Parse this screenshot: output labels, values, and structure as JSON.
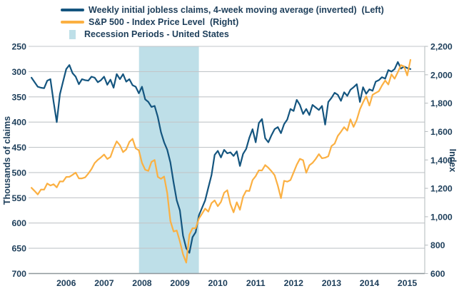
{
  "legend": {
    "items": [
      {
        "label": "Weekly initial jobless claims, 4-week moving average (inverted)  (Left)",
        "swatch": "blue-line"
      },
      {
        "label": "S&P 500 - Index Price Level  (Right)",
        "swatch": "orange-line"
      },
      {
        "label": "Recession Periods - United States",
        "swatch": "recession-rect"
      }
    ]
  },
  "colors": {
    "claims_line": "#14557f",
    "sp500_line": "#fbb042",
    "recession_band": "#bedfe8",
    "gridline": "#c2c6c9",
    "bottom_spine": "#8f979b",
    "right_spine": "#b9bec1",
    "text": "#1d3e5a"
  },
  "chart_data": {
    "type": "line",
    "title": "",
    "legend_position": "top-left",
    "grid": "horizontal",
    "x_domain": [
      2005.1,
      2015.46
    ],
    "x_axis": {
      "tick_values": [
        2006,
        2007,
        2008,
        2009,
        2010,
        2011,
        2012,
        2013,
        2014,
        2015
      ],
      "tick_labels": [
        "2006",
        "2007",
        "2008",
        "2009",
        "2010",
        "2011",
        "2012",
        "2013",
        "2014",
        "2015"
      ]
    },
    "left_axis": {
      "label": "Thousands of claims",
      "min": 250,
      "max": 700,
      "inverted": true,
      "tick_values": [
        250,
        300,
        350,
        400,
        450,
        500,
        550,
        600,
        650,
        700
      ],
      "tick_labels": [
        "250",
        "300",
        "350",
        "400",
        "450",
        "500",
        "550",
        "600",
        "650",
        "700"
      ]
    },
    "right_axis": {
      "label": "Index",
      "min": 600,
      "max": 2200,
      "tick_values": [
        600,
        800,
        1000,
        1200,
        1400,
        1600,
        1800,
        2000,
        2200
      ],
      "tick_labels": [
        "600",
        "800",
        "1,000",
        "1,200",
        "1,400",
        "1,600",
        "1,800",
        "2,000",
        "2,200"
      ]
    },
    "recession_band": {
      "label": "Recession Periods - United States",
      "x_start": 2007.92,
      "x_end": 2009.5
    },
    "series": [
      {
        "name": "Weekly initial jobless claims, 4-week moving average (inverted)  (Left)",
        "axis": "left",
        "color": "#14557f",
        "x_start": 2005.083,
        "x_step_years": 0.08333,
        "values": [
          312,
          321,
          330,
          332,
          333,
          318,
          315,
          360,
          400,
          345,
          320,
          295,
          287,
          303,
          310,
          325,
          315,
          317,
          318,
          310,
          312,
          321,
          317,
          310,
          326,
          316,
          332,
          305,
          315,
          305,
          320,
          315,
          327,
          330,
          343,
          330,
          355,
          360,
          370,
          368,
          390,
          420,
          440,
          455,
          480,
          520,
          555,
          575,
          625,
          650,
          659,
          628,
          618,
          585,
          570,
          555,
          530,
          505,
          465,
          457,
          470,
          455,
          462,
          460,
          467,
          458,
          487,
          463,
          453,
          431,
          414,
          440,
          402,
          394,
          432,
          440,
          426,
          414,
          410,
          422,
          404,
          395,
          374,
          378,
          356,
          366,
          384,
          374,
          386,
          366,
          371,
          376,
          368,
          405,
          360,
          352,
          342,
          346,
          358,
          341,
          348,
          336,
          331,
          325,
          360,
          331,
          344,
          335,
          338,
          320,
          317,
          311,
          314,
          297,
          300,
          295,
          281,
          294,
          290,
          293,
          295
        ]
      },
      {
        "name": "S&P 500 - Index Price Level  (Right)",
        "axis": "right",
        "color": "#fbb042",
        "x_start": 2005.083,
        "x_step_years": 0.08333,
        "values": [
          1204,
          1181,
          1157,
          1192,
          1191,
          1234,
          1220,
          1229,
          1207,
          1249,
          1248,
          1280,
          1281,
          1295,
          1311,
          1270,
          1270,
          1277,
          1304,
          1336,
          1378,
          1401,
          1418,
          1438,
          1407,
          1421,
          1482,
          1531,
          1503,
          1455,
          1474,
          1527,
          1549,
          1481,
          1468,
          1379,
          1331,
          1323,
          1386,
          1400,
          1280,
          1267,
          1283,
          1166,
          969,
          896,
          903,
          826,
          735,
          677,
          873,
          919,
          919,
          987,
          1021,
          1057,
          1036,
          1096,
          1115,
          1074,
          1104,
          1169,
          1187,
          1089,
          1031,
          1102,
          1049,
          1141,
          1183,
          1181,
          1258,
          1286,
          1327,
          1326,
          1364,
          1345,
          1321,
          1292,
          1219,
          1131,
          1253,
          1247,
          1258,
          1312,
          1366,
          1408,
          1398,
          1310,
          1362,
          1379,
          1407,
          1441,
          1412,
          1416,
          1426,
          1498,
          1515,
          1569,
          1598,
          1631,
          1606,
          1686,
          1633,
          1682,
          1757,
          1806,
          1848,
          1783,
          1859,
          1872,
          1884,
          1924,
          1960,
          1931,
          2003,
          1972,
          2018,
          2068,
          2059,
          1995,
          2105
        ]
      }
    ]
  }
}
